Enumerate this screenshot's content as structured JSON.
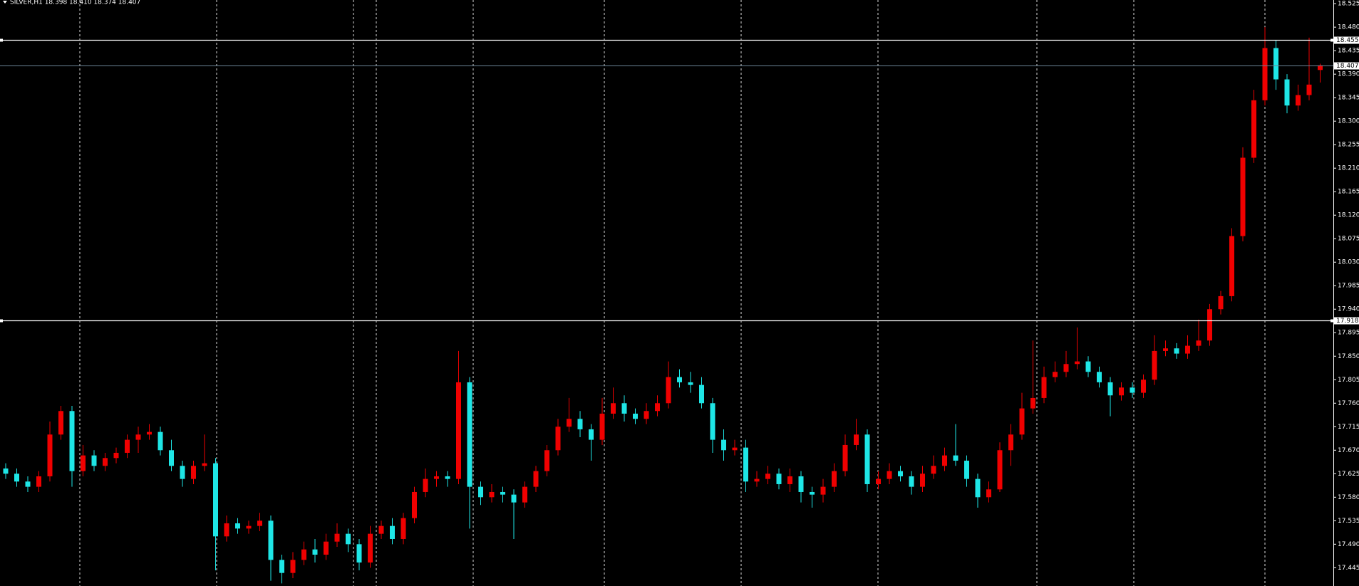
{
  "chart_data": {
    "type": "candlestick",
    "title": "SILVER,H1  18.398 18.410 18.374 18.407",
    "up_color": "#f00000",
    "down_color": "#1ee6e6",
    "ylim": [
      17.41,
      18.532
    ],
    "yticks": [
      18.525,
      {
        "value": 18.48,
        "label": "18.480"
      },
      18.435,
      {
        "value": 18.39,
        "label": "18.390"
      },
      18.345,
      {
        "value": 18.3,
        "label": "18.300"
      },
      18.255,
      {
        "value": 18.21,
        "label": "18.210"
      },
      18.165,
      {
        "value": 18.12,
        "label": "18.120"
      },
      18.075,
      {
        "value": 18.03,
        "label": "18.030"
      },
      17.985,
      {
        "value": 17.94,
        "label": "17.940"
      },
      17.895,
      {
        "value": 17.85,
        "label": "17.850"
      },
      17.805,
      {
        "value": 17.76,
        "label": "17.760"
      },
      17.715,
      {
        "value": 17.67,
        "label": "17.670"
      },
      17.625,
      {
        "value": 17.58,
        "label": "17.580"
      },
      17.535,
      {
        "value": 17.49,
        "label": "17.490"
      },
      17.445
    ],
    "grid": false,
    "levels": [
      18.455,
      17.918
    ],
    "last_price": 18.407,
    "open": [
      17.635,
      17.625,
      17.61,
      17.6,
      17.62,
      17.7,
      17.745,
      17.63,
      17.66,
      17.64,
      17.655,
      17.665,
      17.69,
      17.7,
      17.705,
      17.67,
      17.64,
      17.615,
      17.64,
      17.645,
      17.505,
      17.53,
      17.52,
      17.525,
      17.535,
      17.46,
      17.435,
      17.46,
      17.48,
      17.47,
      17.495,
      17.51,
      17.49,
      17.455,
      17.51,
      17.525,
      17.5,
      17.54,
      17.59,
      17.615,
      17.62,
      17.615,
      17.8,
      17.6,
      17.58,
      17.59,
      17.585,
      17.57,
      17.6,
      17.63,
      17.67,
      17.715,
      17.73,
      17.71,
      17.69,
      17.74,
      17.76,
      17.74,
      17.73,
      17.745,
      17.76,
      17.81,
      17.8,
      17.795,
      17.76,
      17.69,
      17.67,
      17.675,
      17.61,
      17.615,
      17.625,
      17.605,
      17.62,
      17.59,
      17.585,
      17.6,
      17.63,
      17.68,
      17.7,
      17.605,
      17.615,
      17.63,
      17.62,
      17.6,
      17.625,
      17.64,
      17.66,
      17.65,
      17.615,
      17.58,
      17.595,
      17.67,
      17.7,
      17.75,
      17.77,
      17.81,
      17.82,
      17.835,
      17.84,
      17.82,
      17.8,
      17.775,
      17.79,
      17.78,
      17.805,
      17.86,
      17.865,
      17.855,
      17.87,
      17.88,
      17.94,
      17.965,
      18.08,
      18.23,
      18.34,
      18.44,
      18.38,
      18.33,
      18.35,
      18.398
    ],
    "high": [
      17.645,
      17.635,
      17.62,
      17.63,
      17.725,
      17.755,
      17.755,
      17.68,
      17.67,
      17.665,
      17.675,
      17.7,
      17.715,
      17.72,
      17.715,
      17.69,
      17.65,
      17.65,
      17.7,
      17.655,
      17.545,
      17.54,
      17.535,
      17.55,
      17.545,
      17.47,
      17.475,
      17.495,
      17.5,
      17.51,
      17.53,
      17.52,
      17.5,
      17.525,
      17.535,
      17.54,
      17.55,
      17.6,
      17.635,
      17.63,
      17.63,
      17.86,
      17.81,
      17.61,
      17.605,
      17.6,
      17.595,
      17.61,
      17.64,
      17.68,
      17.73,
      17.77,
      17.745,
      17.72,
      17.77,
      17.79,
      17.775,
      17.75,
      17.76,
      17.775,
      17.84,
      17.825,
      17.82,
      17.81,
      17.77,
      17.71,
      17.69,
      17.69,
      17.63,
      17.64,
      17.635,
      17.635,
      17.63,
      17.6,
      17.615,
      17.645,
      17.7,
      17.73,
      17.71,
      17.63,
      17.645,
      17.64,
      17.63,
      17.64,
      17.66,
      17.675,
      17.72,
      17.66,
      17.625,
      17.61,
      17.685,
      17.72,
      17.78,
      17.88,
      17.83,
      17.84,
      17.86,
      17.905,
      17.85,
      17.83,
      17.81,
      17.8,
      17.8,
      17.815,
      17.89,
      17.88,
      17.875,
      17.89,
      17.92,
      17.95,
      17.975,
      18.095,
      18.25,
      18.36,
      18.48,
      18.455,
      18.39,
      18.37,
      18.46,
      18.41
    ],
    "low": [
      17.615,
      17.6,
      17.59,
      17.59,
      17.61,
      17.69,
      17.6,
      17.62,
      17.63,
      17.63,
      17.645,
      17.655,
      17.665,
      17.69,
      17.66,
      17.63,
      17.6,
      17.605,
      17.63,
      17.44,
      17.495,
      17.51,
      17.51,
      17.515,
      17.42,
      17.415,
      17.425,
      17.45,
      17.455,
      17.46,
      17.485,
      17.475,
      17.44,
      17.445,
      17.5,
      17.49,
      17.49,
      17.53,
      17.58,
      17.6,
      17.6,
      17.605,
      17.52,
      17.565,
      17.57,
      17.57,
      17.5,
      17.56,
      17.59,
      17.62,
      17.66,
      17.705,
      17.695,
      17.65,
      17.68,
      17.73,
      17.725,
      17.72,
      17.72,
      17.735,
      17.75,
      17.79,
      17.78,
      17.75,
      17.665,
      17.65,
      17.66,
      17.59,
      17.6,
      17.605,
      17.595,
      17.59,
      17.57,
      17.56,
      17.57,
      17.59,
      17.62,
      17.67,
      17.59,
      17.595,
      17.605,
      17.61,
      17.585,
      17.59,
      17.615,
      17.63,
      17.64,
      17.6,
      17.56,
      17.57,
      17.59,
      17.64,
      17.69,
      17.74,
      17.76,
      17.8,
      17.81,
      17.825,
      17.81,
      17.79,
      17.735,
      17.765,
      17.77,
      17.77,
      17.795,
      17.85,
      17.845,
      17.845,
      17.86,
      17.87,
      17.93,
      17.955,
      18.07,
      18.22,
      18.33,
      18.36,
      18.315,
      18.32,
      18.34,
      18.374
    ],
    "close": [
      17.625,
      17.61,
      17.6,
      17.62,
      17.7,
      17.745,
      17.63,
      17.66,
      17.64,
      17.655,
      17.665,
      17.69,
      17.7,
      17.705,
      17.67,
      17.64,
      17.615,
      17.64,
      17.645,
      17.505,
      17.53,
      17.52,
      17.525,
      17.535,
      17.46,
      17.435,
      17.46,
      17.48,
      17.47,
      17.495,
      17.51,
      17.49,
      17.455,
      17.51,
      17.525,
      17.5,
      17.54,
      17.59,
      17.615,
      17.62,
      17.615,
      17.8,
      17.6,
      17.58,
      17.59,
      17.585,
      17.57,
      17.6,
      17.63,
      17.67,
      17.715,
      17.73,
      17.71,
      17.69,
      17.74,
      17.76,
      17.74,
      17.73,
      17.745,
      17.76,
      17.81,
      17.8,
      17.795,
      17.76,
      17.69,
      17.67,
      17.675,
      17.61,
      17.615,
      17.625,
      17.605,
      17.62,
      17.59,
      17.585,
      17.6,
      17.63,
      17.68,
      17.7,
      17.605,
      17.615,
      17.63,
      17.62,
      17.6,
      17.625,
      17.64,
      17.66,
      17.65,
      17.615,
      17.58,
      17.595,
      17.67,
      17.7,
      17.75,
      17.77,
      17.81,
      17.82,
      17.835,
      17.84,
      17.82,
      17.8,
      17.775,
      17.79,
      17.78,
      17.805,
      17.86,
      17.865,
      17.855,
      17.87,
      17.88,
      17.94,
      17.965,
      18.08,
      18.23,
      18.34,
      18.44,
      18.38,
      18.33,
      18.35,
      18.37,
      18.407
    ]
  }
}
